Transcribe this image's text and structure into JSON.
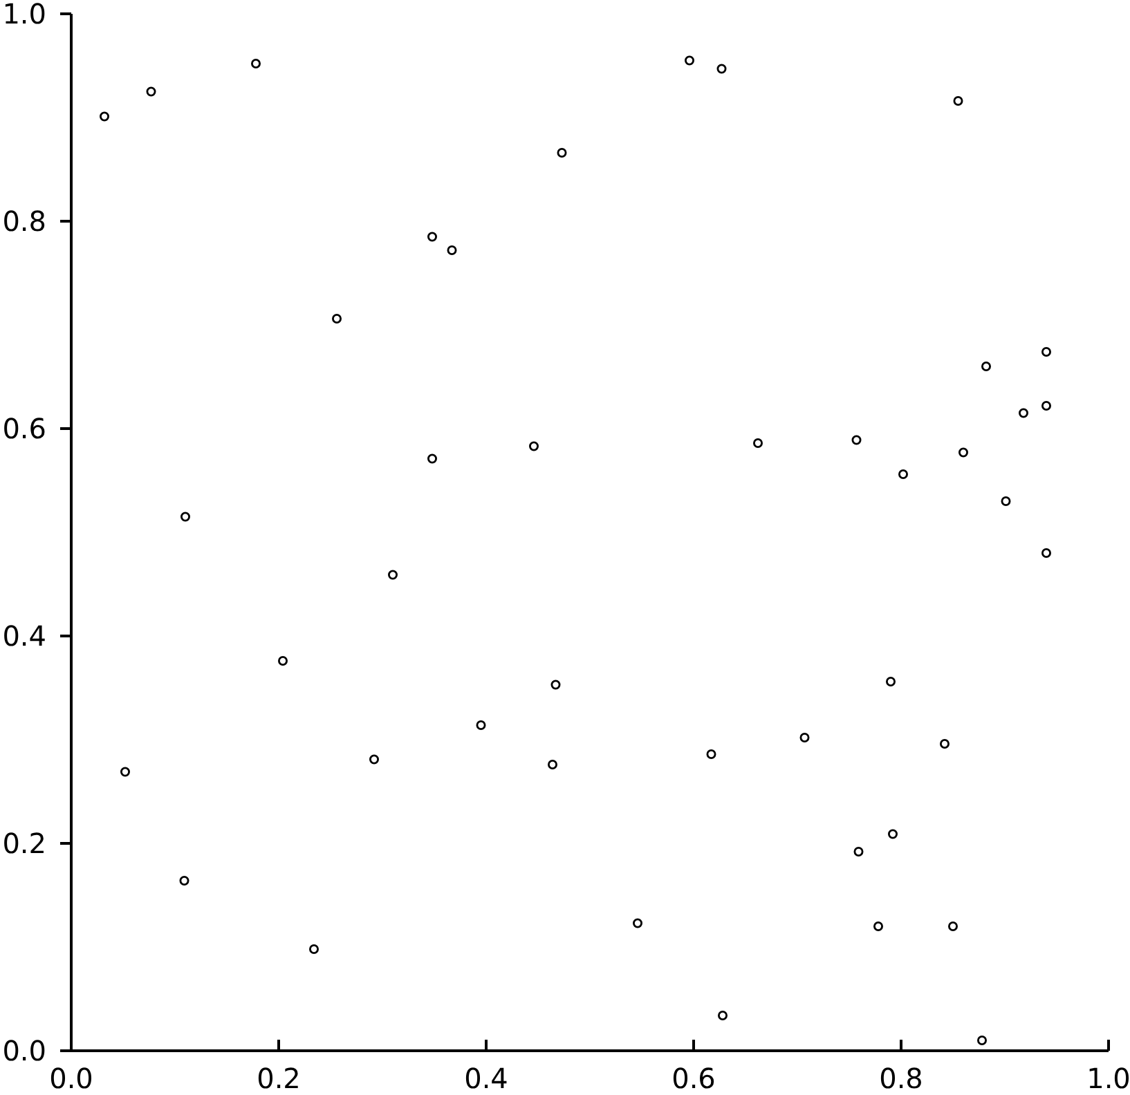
{
  "chart_data": {
    "type": "scatter",
    "xlim": [
      0,
      1
    ],
    "ylim": [
      0,
      1
    ],
    "xticks": [
      {
        "value": 0,
        "label": "0.0"
      },
      {
        "value": 0.2,
        "label": "0.2"
      },
      {
        "value": 0.4,
        "label": "0.4"
      },
      {
        "value": 0.6,
        "label": "0.6"
      },
      {
        "value": 0.8,
        "label": "0.8"
      },
      {
        "value": 1,
        "label": "1.0"
      }
    ],
    "yticks": [
      {
        "value": 0,
        "label": "0.0"
      },
      {
        "value": 0.2,
        "label": "0.2"
      },
      {
        "value": 0.4,
        "label": "0.4"
      },
      {
        "value": 0.6,
        "label": "0.6"
      },
      {
        "value": 0.8,
        "label": "0.8"
      },
      {
        "value": 1,
        "label": "1.0"
      }
    ],
    "marker": "circle",
    "grid": false,
    "series": [
      {
        "color": "#000000",
        "x": [
          0.032,
          0.077,
          0.178,
          0.256,
          0.348,
          0.367,
          0.348,
          0.446,
          0.473,
          0.11,
          0.596,
          0.627,
          0.855,
          0.94,
          0.882,
          0.94,
          0.918,
          0.662,
          0.757,
          0.86,
          0.802,
          0.901,
          0.94,
          0.79,
          0.707,
          0.842,
          0.617,
          0.467,
          0.464,
          0.792,
          0.759,
          0.546,
          0.778,
          0.85,
          0.628,
          0.878,
          0.31,
          0.204,
          0.395,
          0.292,
          0.052,
          0.109,
          0.234
        ],
        "values": [
          0.901,
          0.925,
          0.952,
          0.706,
          0.785,
          0.772,
          0.571,
          0.583,
          0.866,
          0.515,
          0.955,
          0.947,
          0.916,
          0.674,
          0.66,
          0.622,
          0.615,
          0.586,
          0.589,
          0.577,
          0.556,
          0.53,
          0.48,
          0.356,
          0.302,
          0.296,
          0.286,
          0.353,
          0.276,
          0.209,
          0.192,
          0.123,
          0.12,
          0.12,
          0.034,
          0.01,
          0.459,
          0.376,
          0.314,
          0.281,
          0.269,
          0.164,
          0.098
        ]
      }
    ]
  }
}
